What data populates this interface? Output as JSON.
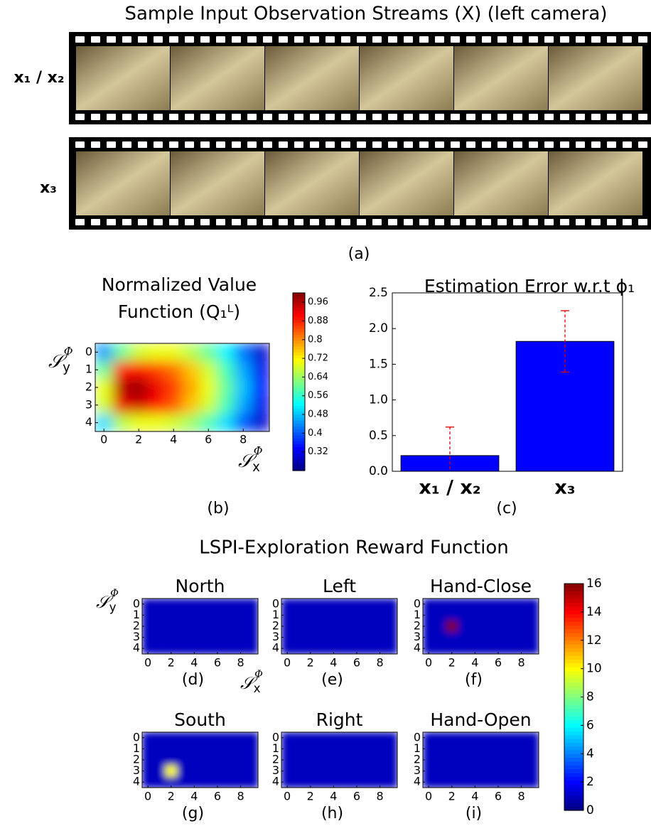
{
  "title": "Sample Input Observation Streams (X) (left camera)",
  "streams": [
    {
      "label": "x₁ / x₂"
    },
    {
      "label": "x₃"
    }
  ],
  "panel_a": "(a)",
  "chart_data": [
    {
      "type": "heatmap",
      "panel": "(b)",
      "title_lines": [
        "Normalized Value",
        "Function (Q₁ᴸ)"
      ],
      "ylabel": {
        "text": "𝒮",
        "sub": "y",
        "sup": "Φ"
      },
      "xlabel": {
        "text": "𝒮",
        "sub": "x",
        "sup": "Φ"
      },
      "xlim": [
        -0.5,
        9.5
      ],
      "ylim": [
        4.5,
        -0.5
      ],
      "xticks": [
        0,
        2,
        4,
        6,
        8
      ],
      "yticks": [
        0,
        1,
        2,
        3,
        4
      ],
      "clim": [
        0.24,
        1.0
      ],
      "cbar_ticks": [
        0.32,
        0.4,
        0.48,
        0.56,
        0.64,
        0.72,
        0.8,
        0.88,
        0.96
      ],
      "values": [
        [
          0.45,
          0.6,
          0.68,
          0.7,
          0.7,
          0.66,
          0.6,
          0.52,
          0.42,
          0.3
        ],
        [
          0.6,
          0.88,
          0.9,
          0.86,
          0.82,
          0.76,
          0.68,
          0.58,
          0.46,
          0.32
        ],
        [
          0.7,
          0.96,
          0.98,
          0.92,
          0.86,
          0.78,
          0.7,
          0.6,
          0.48,
          0.34
        ],
        [
          0.68,
          0.92,
          0.94,
          0.9,
          0.84,
          0.76,
          0.68,
          0.58,
          0.46,
          0.32
        ],
        [
          0.5,
          0.66,
          0.7,
          0.7,
          0.68,
          0.64,
          0.58,
          0.5,
          0.4,
          0.3
        ]
      ]
    },
    {
      "type": "bar",
      "panel": "(c)",
      "title": "Estimation Error w.r.t ϕ₁",
      "categories": [
        "x₁ / x₂",
        "x₃"
      ],
      "values": [
        0.22,
        1.82
      ],
      "errors": [
        0.4,
        0.43
      ],
      "color": "#0000ff",
      "error_color": "#dd0000",
      "ylim": [
        0,
        2.5
      ],
      "yticks": [
        {
          "value": 0,
          "label": "0.0"
        },
        0.5,
        {
          "value": 1,
          "label": "1.0"
        },
        1.5,
        {
          "value": 2,
          "label": "2.0"
        },
        2.5
      ]
    },
    {
      "type": "heatmap_grid",
      "title": "LSPI-Exploration Reward Function",
      "ylabel": {
        "text": "𝒮",
        "sub": "y",
        "sup": "Φ"
      },
      "xlabel": {
        "text": "𝒮",
        "sub": "x",
        "sup": "Φ"
      },
      "xlim": [
        -0.5,
        9.5
      ],
      "ylim": [
        4.5,
        -0.5
      ],
      "xticks": [
        0,
        2,
        4,
        6,
        8
      ],
      "yticks": [
        0,
        1,
        2,
        3,
        4
      ],
      "clim": [
        0,
        16
      ],
      "cbar_ticks": [
        0,
        2,
        4,
        6,
        8,
        10,
        12,
        14,
        16
      ],
      "maps": [
        {
          "title": "North",
          "panel": "(d)",
          "values": [
            [
              1,
              1,
              1,
              1,
              1,
              1,
              1,
              1,
              1,
              1
            ],
            [
              1,
              1,
              1,
              1,
              1,
              1,
              1,
              1,
              1,
              1
            ],
            [
              1,
              1,
              1,
              1,
              1,
              1,
              1,
              1,
              1,
              1
            ],
            [
              1,
              1,
              1,
              1,
              1,
              1,
              1,
              1,
              1,
              1
            ],
            [
              1,
              1,
              1,
              1,
              1,
              1,
              1,
              1,
              1,
              1
            ]
          ]
        },
        {
          "title": "Left",
          "panel": "(e)",
          "values": [
            [
              1,
              1,
              1,
              1,
              1,
              1,
              1,
              1,
              1,
              1
            ],
            [
              1,
              1,
              1,
              1,
              1,
              1,
              1,
              1,
              1,
              1
            ],
            [
              1,
              1,
              1,
              1,
              1,
              1,
              1,
              1,
              1,
              1
            ],
            [
              1,
              1,
              1,
              1,
              1,
              1,
              1,
              1,
              1,
              1
            ],
            [
              1,
              1,
              1,
              1,
              1,
              1,
              1,
              1,
              1,
              1
            ]
          ]
        },
        {
          "title": "Hand-Close",
          "panel": "(f)",
          "values": [
            [
              1,
              1,
              1,
              1,
              1,
              1,
              1,
              1,
              1,
              1
            ],
            [
              1,
              1,
              1,
              1,
              1,
              1,
              1,
              1,
              1,
              1
            ],
            [
              1,
              1,
              16,
              1,
              1,
              1,
              1,
              1,
              1,
              1
            ],
            [
              1,
              1,
              1,
              1,
              1,
              1,
              1,
              1,
              1,
              1
            ],
            [
              1,
              1,
              1,
              1,
              1,
              1,
              1,
              1,
              1,
              1
            ]
          ]
        },
        {
          "title": "South",
          "panel": "(g)",
          "values": [
            [
              1,
              1,
              1,
              1,
              1,
              1,
              1,
              1,
              1,
              1
            ],
            [
              1,
              1,
              1,
              1,
              1,
              1,
              1,
              1,
              1,
              1
            ],
            [
              1,
              1,
              1,
              1,
              1,
              1,
              1,
              1,
              1,
              1
            ],
            [
              1,
              1,
              10,
              1,
              1,
              1,
              1,
              1,
              1,
              1
            ],
            [
              1,
              1,
              1,
              1,
              1,
              1,
              1,
              1,
              1,
              1
            ]
          ]
        },
        {
          "title": "Right",
          "panel": "(h)",
          "values": [
            [
              1,
              1,
              1,
              1,
              1,
              1,
              1,
              1,
              1,
              1
            ],
            [
              1,
              1,
              1,
              1,
              1,
              1,
              1,
              1,
              1,
              1
            ],
            [
              1,
              1,
              1,
              1,
              1,
              1,
              1,
              1,
              1,
              1
            ],
            [
              1,
              1,
              1,
              1,
              1,
              1,
              1,
              1,
              1,
              1
            ],
            [
              1,
              1,
              1,
              1,
              1,
              1,
              1,
              1,
              1,
              1
            ]
          ]
        },
        {
          "title": "Hand-Open",
          "panel": "(i)",
          "values": [
            [
              1,
              1,
              1,
              1,
              1,
              1,
              1,
              1,
              1,
              1
            ],
            [
              1,
              1,
              1,
              1,
              1,
              1,
              1,
              1,
              1,
              1
            ],
            [
              1,
              1,
              1,
              1,
              1,
              1,
              1,
              1,
              1,
              1
            ],
            [
              1,
              1,
              1,
              1,
              1,
              1,
              1,
              1,
              1,
              1
            ],
            [
              1,
              1,
              1,
              1,
              1,
              1,
              1,
              1,
              1,
              1
            ]
          ]
        }
      ]
    }
  ]
}
